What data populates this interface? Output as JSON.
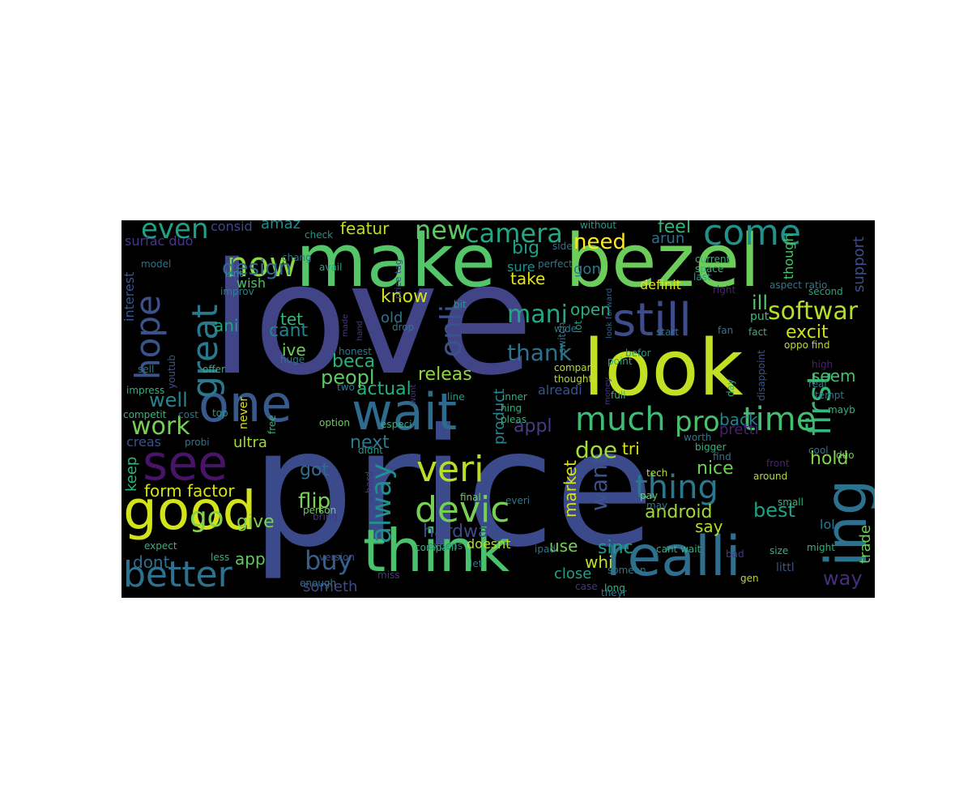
{
  "figure": {
    "background": "#000000",
    "palette": "viridis"
  },
  "words": [
    {
      "text": "love",
      "color": "#414487"
    },
    {
      "text": "price",
      "color": "#3b4a8a"
    },
    {
      "text": "make",
      "color": "#54c568"
    },
    {
      "text": "bezel",
      "color": "#6ccd5a"
    },
    {
      "text": "look",
      "color": "#c2df23"
    },
    {
      "text": "think",
      "color": "#4ac16d"
    },
    {
      "text": "realli",
      "color": "#2e6f8e"
    },
    {
      "text": "one",
      "color": "#38598c"
    },
    {
      "text": "wait",
      "color": "#2f6b8e"
    },
    {
      "text": "good",
      "color": "#d2e21b"
    },
    {
      "text": "see",
      "color": "#481467"
    },
    {
      "text": "ing",
      "color": "#2c728e"
    },
    {
      "text": "still",
      "color": "#3e4c8a"
    },
    {
      "text": "come",
      "color": "#21918c"
    },
    {
      "text": "now",
      "color": "#8fd744"
    },
    {
      "text": "first",
      "color": "#35b779"
    },
    {
      "text": "great",
      "color": "#2a788e"
    },
    {
      "text": "hope",
      "color": "#3b528b"
    },
    {
      "text": "better",
      "color": "#2c728e"
    },
    {
      "text": "new",
      "color": "#5ec962"
    },
    {
      "text": "camera",
      "color": "#22a884"
    },
    {
      "text": "even",
      "color": "#1fa187"
    },
    {
      "text": "much",
      "color": "#3dbc74"
    },
    {
      "text": "time",
      "color": "#42be71"
    },
    {
      "text": "veri",
      "color": "#b8de29"
    },
    {
      "text": "devic",
      "color": "#75d054"
    },
    {
      "text": "thing",
      "color": "#2a788e"
    },
    {
      "text": "pro",
      "color": "#4ac16d"
    },
    {
      "text": "softwar",
      "color": "#b5de2b"
    },
    {
      "text": "design",
      "color": "#31688e"
    },
    {
      "text": "need",
      "color": "#fde725"
    },
    {
      "text": "onli",
      "color": "#3b528b"
    },
    {
      "text": "alway",
      "color": "#21908d"
    },
    {
      "text": "work",
      "color": "#75d054"
    },
    {
      "text": "go",
      "color": "#84d44b"
    },
    {
      "text": "featur",
      "color": "#bddf26"
    },
    {
      "text": "feel",
      "color": "#35b779"
    },
    {
      "text": "thank",
      "color": "#2c728e"
    },
    {
      "text": "mani",
      "color": "#22a884"
    },
    {
      "text": "releas",
      "color": "#90d743"
    },
    {
      "text": "actual",
      "color": "#29af7f"
    },
    {
      "text": "excit",
      "color": "#c8e020"
    },
    {
      "text": "want",
      "color": "#3b528b"
    },
    {
      "text": "best",
      "color": "#1fa187"
    },
    {
      "text": "buy",
      "color": "#355f8d"
    },
    {
      "text": "android",
      "color": "#9fda3a"
    },
    {
      "text": "hardwar",
      "color": "#3e4a89"
    },
    {
      "text": "nice",
      "color": "#6ece58"
    },
    {
      "text": "way",
      "color": "#472d7b"
    },
    {
      "text": "form factor",
      "color": "#d8e219"
    },
    {
      "text": "flip",
      "color": "#7ad151"
    },
    {
      "text": "doe",
      "color": "#a5db36"
    },
    {
      "text": "back",
      "color": "#26828e"
    },
    {
      "text": "open",
      "color": "#2ab07f"
    },
    {
      "text": "beca",
      "color": "#2ab07f"
    },
    {
      "text": "peopl",
      "color": "#5ec962"
    },
    {
      "text": "well",
      "color": "#25848e"
    },
    {
      "text": "next",
      "color": "#2a788e"
    },
    {
      "text": "take",
      "color": "#e5e419"
    },
    {
      "text": "big",
      "color": "#1f9e89"
    },
    {
      "text": "know",
      "color": "#d2e21b"
    },
    {
      "text": "cant",
      "color": "#26828e"
    },
    {
      "text": "tet",
      "color": "#35b779"
    },
    {
      "text": "ani",
      "color": "#20a486"
    },
    {
      "text": "use",
      "color": "#75d054"
    },
    {
      "text": "sinc",
      "color": "#1f9e89"
    },
    {
      "text": "hold",
      "color": "#7fd34e"
    },
    {
      "text": "seem",
      "color": "#46c06f"
    },
    {
      "text": "ill",
      "color": "#52c569"
    },
    {
      "text": "give",
      "color": "#7ad151"
    },
    {
      "text": "appl",
      "color": "#433e85"
    },
    {
      "text": "product",
      "color": "#25848e"
    },
    {
      "text": "market",
      "color": "#d8e219"
    },
    {
      "text": "say",
      "color": "#b2dd2d"
    },
    {
      "text": "got",
      "color": "#2f6c8e"
    },
    {
      "text": "keep",
      "color": "#2fb47c"
    },
    {
      "text": "amaz",
      "color": "#228c8d"
    },
    {
      "text": "surfac duo",
      "color": "#443983"
    },
    {
      "text": "consid",
      "color": "#404688"
    },
    {
      "text": "interest",
      "color": "#39558c"
    },
    {
      "text": "arun",
      "color": "#2e6e8e"
    },
    {
      "text": "gon",
      "color": "#29798e"
    },
    {
      "text": "definit",
      "color": "#e7e419"
    },
    {
      "text": "though",
      "color": "#4ec36b"
    },
    {
      "text": "support",
      "color": "#3d4d8a"
    },
    {
      "text": "pretti",
      "color": "#481f70"
    },
    {
      "text": "dont",
      "color": "#2e6f8e"
    },
    {
      "text": "app",
      "color": "#5ec962"
    },
    {
      "text": "someth",
      "color": "#3e4a89"
    },
    {
      "text": "whi",
      "color": "#c0df25"
    },
    {
      "text": "close",
      "color": "#1fa188"
    },
    {
      "text": "tri",
      "color": "#d8e219"
    },
    {
      "text": "trade",
      "color": "#6ccd5a"
    },
    {
      "text": "lol",
      "color": "#2a788e"
    },
    {
      "text": "littl",
      "color": "#3b528b"
    },
    {
      "text": "alreadi",
      "color": "#3b528b"
    },
    {
      "text": "ive",
      "color": "#6ece58"
    },
    {
      "text": "wish",
      "color": "#4ac16d"
    },
    {
      "text": "ultra",
      "color": "#9fda3a"
    },
    {
      "text": "creas",
      "color": "#3b528b"
    },
    {
      "text": "doesnt",
      "color": "#b5de2b"
    },
    {
      "text": "old",
      "color": "#2c728e"
    },
    {
      "text": "never",
      "color": "#d8e219"
    },
    {
      "text": "sure",
      "color": "#21918c"
    },
    {
      "text": "check",
      "color": "#20928c"
    },
    {
      "text": "model",
      "color": "#2c728e"
    },
    {
      "text": "chang",
      "color": "#2c728e"
    },
    {
      "text": "isnt",
      "color": "#1f9e89"
    },
    {
      "text": "improv",
      "color": "#25848e"
    },
    {
      "text": "avail",
      "color": "#20a486"
    },
    {
      "text": "price tag",
      "color": "#404688"
    },
    {
      "text": "perfect",
      "color": "#2a788e"
    },
    {
      "text": "side",
      "color": "#2c728e"
    },
    {
      "text": "without",
      "color": "#1f9e89"
    },
    {
      "text": "current",
      "color": "#35b779"
    },
    {
      "text": "space",
      "color": "#2fb47c"
    },
    {
      "text": "last",
      "color": "#1f9e89"
    },
    {
      "text": "right",
      "color": "#482173"
    },
    {
      "text": "aspect ratio",
      "color": "#2a788e"
    },
    {
      "text": "second",
      "color": "#22a884"
    },
    {
      "text": "look forward",
      "color": "#33638d"
    },
    {
      "text": "put",
      "color": "#3dbc74"
    },
    {
      "text": "fan",
      "color": "#2a788e"
    },
    {
      "text": "fact",
      "color": "#35b779"
    },
    {
      "text": "start",
      "color": "#2c728e"
    },
    {
      "text": "oppo find",
      "color": "#b5de2b"
    },
    {
      "text": "befor",
      "color": "#1f9e89"
    },
    {
      "text": "lot",
      "color": "#1f9e89"
    },
    {
      "text": "switch",
      "color": "#2a788e"
    },
    {
      "text": "drop",
      "color": "#2a788e"
    },
    {
      "text": "bit",
      "color": "#1f9e89"
    },
    {
      "text": "made",
      "color": "#453882"
    },
    {
      "text": "hand",
      "color": "#453882"
    },
    {
      "text": "honest",
      "color": "#2a788e"
    },
    {
      "text": "huge",
      "color": "#2a788e"
    },
    {
      "text": "sell",
      "color": "#2a788e"
    },
    {
      "text": "youtub",
      "color": "#3b528b"
    },
    {
      "text": "offer",
      "color": "#2fb47c"
    },
    {
      "text": "impress",
      "color": "#2fb47c"
    },
    {
      "text": "competit",
      "color": "#35b779"
    },
    {
      "text": "cost",
      "color": "#2a788e"
    },
    {
      "text": "top",
      "color": "#1f9e89"
    },
    {
      "text": "free",
      "color": "#2fb47c"
    },
    {
      "text": "option",
      "color": "#6ece58"
    },
    {
      "text": "two",
      "color": "#2a788e"
    },
    {
      "text": "line",
      "color": "#1f9e89"
    },
    {
      "text": "wont",
      "color": "#453882"
    },
    {
      "text": "inner",
      "color": "#2fb47c"
    },
    {
      "text": "hing",
      "color": "#2fb47c"
    },
    {
      "text": "pleas",
      "color": "#2fb47c"
    },
    {
      "text": "compar",
      "color": "#b5de2b"
    },
    {
      "text": "thought",
      "color": "#b5de2b"
    },
    {
      "text": "wide",
      "color": "#2a788e"
    },
    {
      "text": "money",
      "color": "#453882"
    },
    {
      "text": "point",
      "color": "#22a884"
    },
    {
      "text": "full",
      "color": "#35b779"
    },
    {
      "text": "disappoint",
      "color": "#3b528b"
    },
    {
      "text": "day",
      "color": "#2fb47c"
    },
    {
      "text": "high",
      "color": "#482173"
    },
    {
      "text": "real",
      "color": "#2a788e"
    },
    {
      "text": "tempt",
      "color": "#2a788e"
    },
    {
      "text": "mayb",
      "color": "#2fb47c"
    },
    {
      "text": "worth",
      "color": "#2a788e"
    },
    {
      "text": "bigger",
      "color": "#2fb47c"
    },
    {
      "text": "find",
      "color": "#2a788e"
    },
    {
      "text": "especi",
      "color": "#2fb47c"
    },
    {
      "text": "reason",
      "color": "#3b528b"
    },
    {
      "text": "probi",
      "color": "#2a788e"
    },
    {
      "text": "didnt",
      "color": "#1f9e89"
    },
    {
      "text": "hard",
      "color": "#453882"
    },
    {
      "text": "tech",
      "color": "#b5de2b"
    },
    {
      "text": "pay",
      "color": "#6ece58"
    },
    {
      "text": "front",
      "color": "#482173"
    },
    {
      "text": "around",
      "color": "#b5de2b"
    },
    {
      "text": "cool",
      "color": "#2a788e"
    },
    {
      "text": "duo",
      "color": "#6ece58"
    },
    {
      "text": "person",
      "color": "#6ece58"
    },
    {
      "text": "final",
      "color": "#6ece58"
    },
    {
      "text": "everi",
      "color": "#2a788e"
    },
    {
      "text": "may",
      "color": "#2a788e"
    },
    {
      "text": "small",
      "color": "#2fb47c"
    },
    {
      "text": "bring",
      "color": "#453882"
    },
    {
      "text": "expect",
      "color": "#2fb47c"
    },
    {
      "text": "less",
      "color": "#2fb47c"
    },
    {
      "text": "expens",
      "color": "#2a788e"
    },
    {
      "text": "version",
      "color": "#3b528b"
    },
    {
      "text": "companI",
      "color": "#2fb47c"
    },
    {
      "text": "ipad",
      "color": "#2a788e"
    },
    {
      "text": "someon",
      "color": "#2a788e"
    },
    {
      "text": "cant wait",
      "color": "#2fb47c"
    },
    {
      "text": "bad",
      "color": "#453882"
    },
    {
      "text": "size",
      "color": "#2fb47c"
    },
    {
      "text": "might",
      "color": "#2fb47c"
    },
    {
      "text": "enough",
      "color": "#2a788e"
    },
    {
      "text": "miss",
      "color": "#453882"
    },
    {
      "text": "let",
      "color": "#2a788e"
    },
    {
      "text": "case",
      "color": "#453882"
    },
    {
      "text": "long",
      "color": "#2fb47c"
    },
    {
      "text": "gen",
      "color": "#b5de2b"
    },
    {
      "text": "theyr",
      "color": "#2a788e"
    }
  ]
}
